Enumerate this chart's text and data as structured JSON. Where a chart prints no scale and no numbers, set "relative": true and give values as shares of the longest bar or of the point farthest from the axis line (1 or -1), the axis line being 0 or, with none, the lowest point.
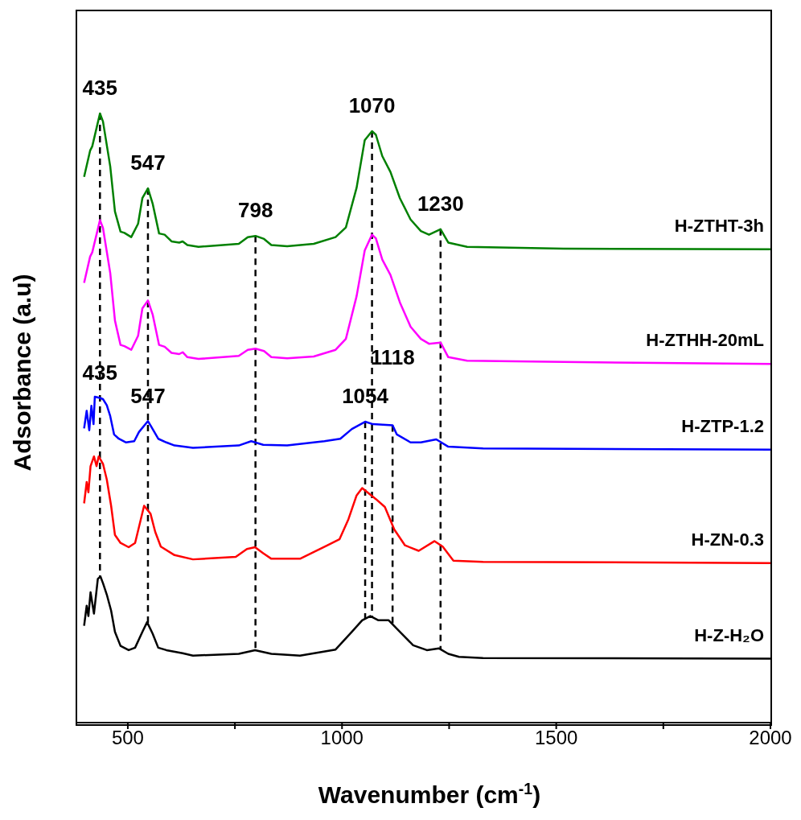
{
  "chart_data": {
    "type": "line",
    "relative": true,
    "xlabel": "Wavenumber (cm$^{-1}$)",
    "ylabel": "Adsorbance (a.u)",
    "xlim": [
      380,
      2000
    ],
    "xticks": [
      500,
      {
        "value": 750,
        "label": null
      },
      1000,
      {
        "value": 1250,
        "label": null
      },
      1500,
      {
        "value": 1750,
        "label": null
      },
      2000
    ],
    "tick_labels": "x",
    "legend": false,
    "grid": false,
    "marker": "none",
    "line_style": "solid",
    "series": [
      {
        "name": "H-ZTHT-3h",
        "color": "#008000",
        "x": [
          398,
          412,
          417,
          435,
          442,
          459,
          470,
          483,
          492,
          508,
          524,
          534,
          547,
          558,
          573,
          586,
          602,
          620,
          628,
          639,
          665,
          759,
          780,
          798,
          818,
          835,
          872,
          934,
          985,
          1009,
          1034,
          1053,
          1070,
          1079,
          1094,
          1113,
          1135,
          1160,
          1184,
          1203,
          1230,
          1248,
          1292,
          1517,
          2000
        ],
        "values": [
          0.896,
          0.939,
          0.946,
          1.0,
          0.987,
          0.913,
          0.839,
          0.806,
          0.804,
          0.797,
          0.819,
          0.861,
          0.877,
          0.852,
          0.803,
          0.801,
          0.79,
          0.788,
          0.79,
          0.784,
          0.781,
          0.786,
          0.797,
          0.799,
          0.794,
          0.784,
          0.782,
          0.786,
          0.797,
          0.813,
          0.878,
          0.956,
          0.971,
          0.965,
          0.93,
          0.904,
          0.861,
          0.826,
          0.807,
          0.801,
          0.81,
          0.788,
          0.781,
          0.778,
          0.777
        ]
      },
      {
        "name": "H-ZTHH-20mL",
        "color": "#ff00ff",
        "x": [
          398,
          412,
          417,
          435,
          442,
          459,
          470,
          483,
          492,
          508,
          524,
          534,
          547,
          558,
          573,
          586,
          602,
          620,
          628,
          639,
          665,
          759,
          780,
          798,
          818,
          835,
          872,
          934,
          985,
          1009,
          1034,
          1053,
          1070,
          1079,
          1094,
          1113,
          1135,
          1160,
          1184,
          1203,
          1230,
          1248,
          1292,
          1517,
          2000
        ],
        "values": [
          0.722,
          0.765,
          0.772,
          0.825,
          0.812,
          0.738,
          0.66,
          0.62,
          0.618,
          0.612,
          0.635,
          0.68,
          0.693,
          0.67,
          0.62,
          0.617,
          0.607,
          0.605,
          0.608,
          0.6,
          0.597,
          0.602,
          0.612,
          0.614,
          0.61,
          0.6,
          0.598,
          0.601,
          0.612,
          0.63,
          0.7,
          0.775,
          0.801,
          0.795,
          0.76,
          0.735,
          0.69,
          0.65,
          0.63,
          0.622,
          0.624,
          0.6,
          0.594,
          0.592,
          0.589
        ]
      },
      {
        "name": "H-ZTP-1.2",
        "color": "#0000ff",
        "x": [
          398,
          404,
          410,
          415,
          420,
          423,
          435,
          442,
          451,
          459,
          468,
          479,
          496,
          515,
          526,
          547,
          553,
          571,
          590,
          609,
          652,
          759,
          788,
          816,
          872,
          959,
          996,
          1023,
          1054,
          1072,
          1118,
          1128,
          1160,
          1184,
          1220,
          1248,
          1329,
          2000
        ],
        "values": [
          0.483,
          0.512,
          0.48,
          0.52,
          0.49,
          0.535,
          0.533,
          0.531,
          0.521,
          0.503,
          0.473,
          0.466,
          0.46,
          0.462,
          0.477,
          0.495,
          0.488,
          0.466,
          0.46,
          0.455,
          0.451,
          0.455,
          0.462,
          0.456,
          0.455,
          0.462,
          0.466,
          0.482,
          0.494,
          0.49,
          0.488,
          0.473,
          0.46,
          0.46,
          0.465,
          0.453,
          0.45,
          0.448
        ]
      },
      {
        "name": "H-ZN-0.3",
        "color": "#ff0000",
        "x": [
          398,
          404,
          408,
          413,
          421,
          427,
          432,
          442,
          451,
          461,
          470,
          483,
          502,
          517,
          526,
          538,
          553,
          564,
          577,
          609,
          652,
          752,
          778,
          797,
          816,
          835,
          902,
          966,
          994,
          1015,
          1034,
          1047,
          1079,
          1100,
          1122,
          1147,
          1179,
          1216,
          1235,
          1260,
          1329,
          2000
        ],
        "values": [
          0.36,
          0.395,
          0.378,
          0.421,
          0.437,
          0.421,
          0.437,
          0.425,
          0.399,
          0.356,
          0.308,
          0.295,
          0.288,
          0.295,
          0.321,
          0.356,
          0.343,
          0.313,
          0.289,
          0.275,
          0.268,
          0.272,
          0.285,
          0.288,
          0.278,
          0.269,
          0.269,
          0.291,
          0.301,
          0.334,
          0.373,
          0.385,
          0.367,
          0.354,
          0.317,
          0.291,
          0.282,
          0.298,
          0.289,
          0.266,
          0.264,
          0.262
        ]
      },
      {
        "name": "H-Z-H₂O",
        "color": "#000000",
        "x": [
          398,
          404,
          408,
          413,
          421,
          430,
          436,
          442,
          451,
          461,
          470,
          483,
          502,
          517,
          534,
          545,
          558,
          571,
          590,
          628,
          652,
          759,
          797,
          835,
          902,
          985,
          1023,
          1047,
          1066,
          1085,
          1109,
          1135,
          1166,
          1198,
          1226,
          1248,
          1273,
          1329,
          2000
        ],
        "values": [
          0.159,
          0.192,
          0.175,
          0.214,
          0.179,
          0.236,
          0.24,
          0.229,
          0.21,
          0.184,
          0.149,
          0.126,
          0.119,
          0.123,
          0.149,
          0.165,
          0.146,
          0.123,
          0.119,
          0.114,
          0.11,
          0.113,
          0.119,
          0.113,
          0.11,
          0.12,
          0.149,
          0.168,
          0.175,
          0.168,
          0.168,
          0.149,
          0.127,
          0.119,
          0.122,
          0.113,
          0.108,
          0.106,
          0.105
        ]
      }
    ],
    "ref_lines": [
      {
        "axis": "x",
        "value": 435,
        "color": "#000000",
        "line_style": "dashed"
      },
      {
        "axis": "x",
        "value": 547,
        "color": "#000000",
        "line_style": "dashed"
      },
      {
        "axis": "x",
        "value": 798,
        "color": "#000000",
        "line_style": "dashed"
      },
      {
        "axis": "x",
        "value": 1054,
        "color": "#000000",
        "line_style": "dashed"
      },
      {
        "axis": "x",
        "value": 1070,
        "color": "#000000",
        "line_style": "dashed"
      },
      {
        "axis": "x",
        "value": 1118,
        "color": "#000000",
        "line_style": "dashed"
      },
      {
        "axis": "x",
        "value": 1230,
        "color": "#000000",
        "line_style": "dashed"
      }
    ],
    "annotations": [
      {
        "text": "435",
        "x": 435,
        "y": 1.0
      },
      {
        "text": "547",
        "x": 547,
        "y": 0.877
      },
      {
        "text": "798",
        "x": 798,
        "y": 0.799
      },
      {
        "text": "1070",
        "x": 1070,
        "y": 0.971
      },
      {
        "text": "1230",
        "x": 1230,
        "y": 0.81
      },
      {
        "text": "435",
        "x": 435,
        "y": 0.533
      },
      {
        "text": "547",
        "x": 547,
        "y": 0.495
      },
      {
        "text": "1054",
        "x": 1054,
        "y": 0.494
      },
      {
        "text": "1118",
        "x": 1118,
        "y": 0.488
      }
    ]
  }
}
